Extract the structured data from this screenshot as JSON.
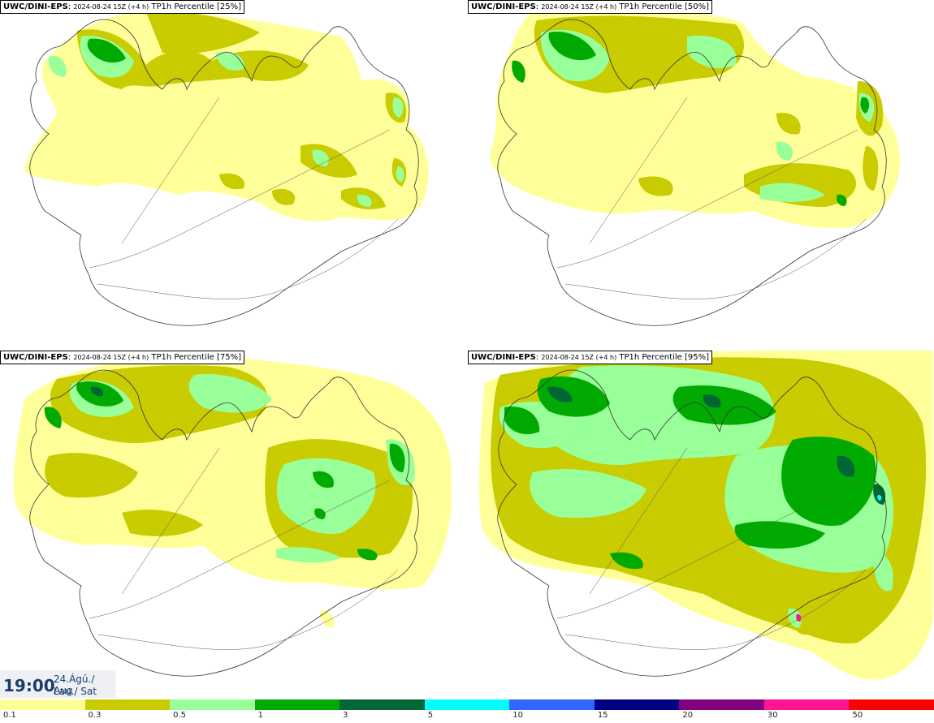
{
  "panels": [
    {
      "model": "UWC/DINI-EPS",
      "run": "2024-08-24 15Z (+4 h)",
      "field": "TP1h Percentile [25%]"
    },
    {
      "model": "UWC/DINI-EPS",
      "run": "2024-08-24 15Z (+4 h)",
      "field": "TP1h Percentile [50%]"
    },
    {
      "model": "UWC/DINI-EPS",
      "run": "2024-08-24 15Z (+4 h)",
      "field": "TP1h Percentile [75%]"
    },
    {
      "model": "UWC/DINI-EPS",
      "run": "2024-08-24 15Z (+4 h)",
      "field": "TP1h Percentile [95%]"
    }
  ],
  "valid_time": {
    "time": "19:00",
    "date_line1": "24.Ágú./ Aug",
    "date_line2": "Lau./ Sat"
  },
  "legend": {
    "colors": [
      "#ffff99",
      "#c8cc00",
      "#99ff99",
      "#00aa00",
      "#006633",
      "#00ffff",
      "#3366ff",
      "#000080",
      "#800080",
      "#ff1493",
      "#ff0000"
    ],
    "ticks": [
      "0.1",
      "0.3",
      "0.5",
      "1",
      "3",
      "5",
      "10",
      "15",
      "20",
      "30",
      "50"
    ]
  }
}
